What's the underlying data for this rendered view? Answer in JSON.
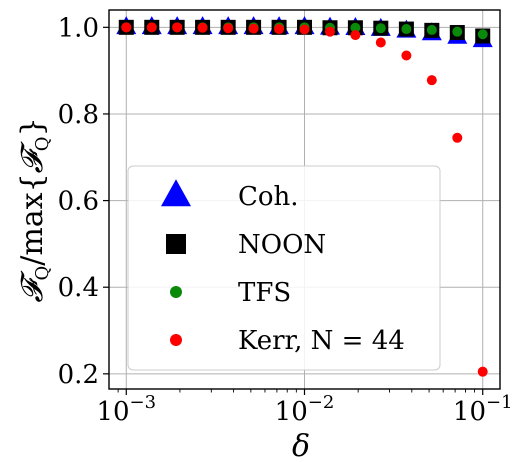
{
  "chart_data": {
    "type": "scatter",
    "xscale": "log",
    "xlim": [
      0.0008,
      0.125
    ],
    "ylim": [
      0.165,
      1.04
    ],
    "grid": true,
    "xlabel": "δ",
    "ylabel": "𝓕Q/max{𝓕Q}",
    "ylabel_parts": {
      "f1": "𝓕",
      "sub1": "Q",
      "mid": "/max{",
      "f2": "𝓕",
      "sub2": "Q",
      "end": "}"
    },
    "xtick_labels": [
      {
        "value": 0.001,
        "base": "10",
        "exp": "−3"
      },
      {
        "value": 0.01,
        "base": "10",
        "exp": "−2"
      },
      {
        "value": 0.1,
        "base": "10",
        "exp": "−1"
      }
    ],
    "yticks": [
      0.2,
      0.4,
      0.6,
      0.8,
      1.0
    ],
    "ytick_labels": [
      "0.2",
      "0.4",
      "0.6",
      "0.8",
      "1.0"
    ],
    "legend_placement": "center-left",
    "legend_labels": [
      "Coh.",
      "NOON",
      "TFS",
      "Kerr, N = 44"
    ],
    "x": [
      0.001,
      0.00139,
      0.00193,
      0.00268,
      0.00373,
      0.00518,
      0.0072,
      0.01,
      0.0139,
      0.0193,
      0.0268,
      0.0373,
      0.0518,
      0.072,
      0.1
    ],
    "series": [
      {
        "name": "Coh.",
        "marker": "triangle",
        "color": "#0000ff",
        "values": [
          1.0,
          1.0,
          1.0,
          1.0,
          1.0,
          1.0,
          1.0,
          1.0,
          0.999,
          0.998,
          0.996,
          0.992,
          0.986,
          0.978,
          0.97
        ]
      },
      {
        "name": "NOON",
        "marker": "square",
        "color": "#000000",
        "values": [
          1.0,
          1.0,
          1.0,
          1.0,
          1.0,
          1.0,
          1.0,
          1.0,
          0.999,
          0.999,
          0.998,
          0.996,
          0.993,
          0.988,
          0.98
        ]
      },
      {
        "name": "TFS",
        "marker": "circle",
        "color": "#0a8a0a",
        "values": [
          1.0,
          1.0,
          1.0,
          1.0,
          1.0,
          1.0,
          1.0,
          1.0,
          0.999,
          0.999,
          0.998,
          0.996,
          0.994,
          0.99,
          0.984
        ]
      },
      {
        "name": "Kerr, N = 44",
        "marker": "circle",
        "color": "#ff0000",
        "values": [
          1.0,
          1.0,
          1.0,
          0.999,
          0.998,
          0.997,
          0.996,
          0.995,
          0.99,
          0.982,
          0.965,
          0.935,
          0.878,
          0.745,
          0.205
        ]
      }
    ]
  }
}
